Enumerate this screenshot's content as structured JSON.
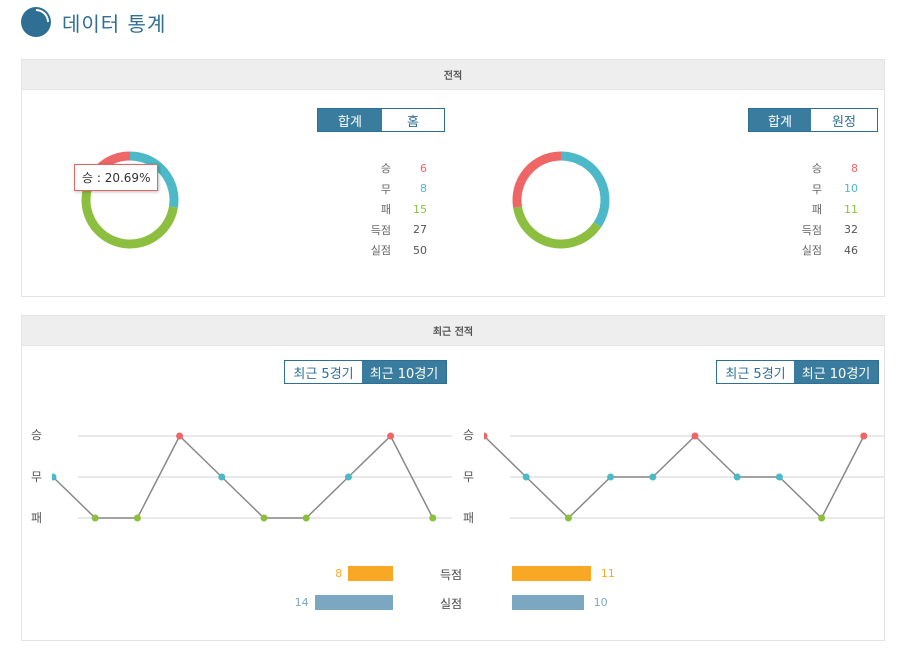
{
  "page": {
    "title": "데이터 통계",
    "icon": "pie-chart-icon"
  },
  "colors": {
    "win": "#ee6666",
    "draw": "#4db8c8",
    "loss": "#8cbf3f",
    "accent": "#2f6f94",
    "goals_for": "#f9a825",
    "goals_against": "#7ba7c0"
  },
  "record": {
    "header": "전적",
    "left": {
      "tabs": [
        {
          "label": "합계",
          "active": true
        },
        {
          "label": "홈",
          "active": false
        }
      ],
      "tooltip": "승 : 20.69%",
      "stats": [
        {
          "label": "승",
          "value": "6"
        },
        {
          "label": "무",
          "value": "8"
        },
        {
          "label": "패",
          "value": "15"
        },
        {
          "label": "득점",
          "value": "27"
        },
        {
          "label": "실점",
          "value": "50"
        }
      ]
    },
    "right": {
      "tabs": [
        {
          "label": "합계",
          "active": true
        },
        {
          "label": "원정",
          "active": false
        }
      ],
      "stats": [
        {
          "label": "승",
          "value": "8"
        },
        {
          "label": "무",
          "value": "10"
        },
        {
          "label": "패",
          "value": "11"
        },
        {
          "label": "득점",
          "value": "32"
        },
        {
          "label": "실점",
          "value": "46"
        }
      ]
    }
  },
  "recent": {
    "header": "최근 전적",
    "left": {
      "tabs": [
        {
          "label": "최근 5경기",
          "active": false
        },
        {
          "label": "최근 10경기",
          "active": true
        }
      ],
      "y_labels": [
        "승",
        "무",
        "패"
      ],
      "results": [
        "무",
        "패",
        "패",
        "승",
        "무",
        "패",
        "패",
        "무",
        "승",
        "패"
      ]
    },
    "right": {
      "tabs": [
        {
          "label": "최근 5경기",
          "active": false
        },
        {
          "label": "최근 10경기",
          "active": true
        }
      ],
      "y_labels": [
        "승",
        "무",
        "패"
      ],
      "results": [
        "승",
        "무",
        "패",
        "무",
        "무",
        "승",
        "무",
        "무",
        "패",
        "승"
      ]
    },
    "compare": [
      {
        "label": "득점",
        "left": 8,
        "right": 11
      },
      {
        "label": "실점",
        "left": 14,
        "right": 10
      }
    ]
  }
}
